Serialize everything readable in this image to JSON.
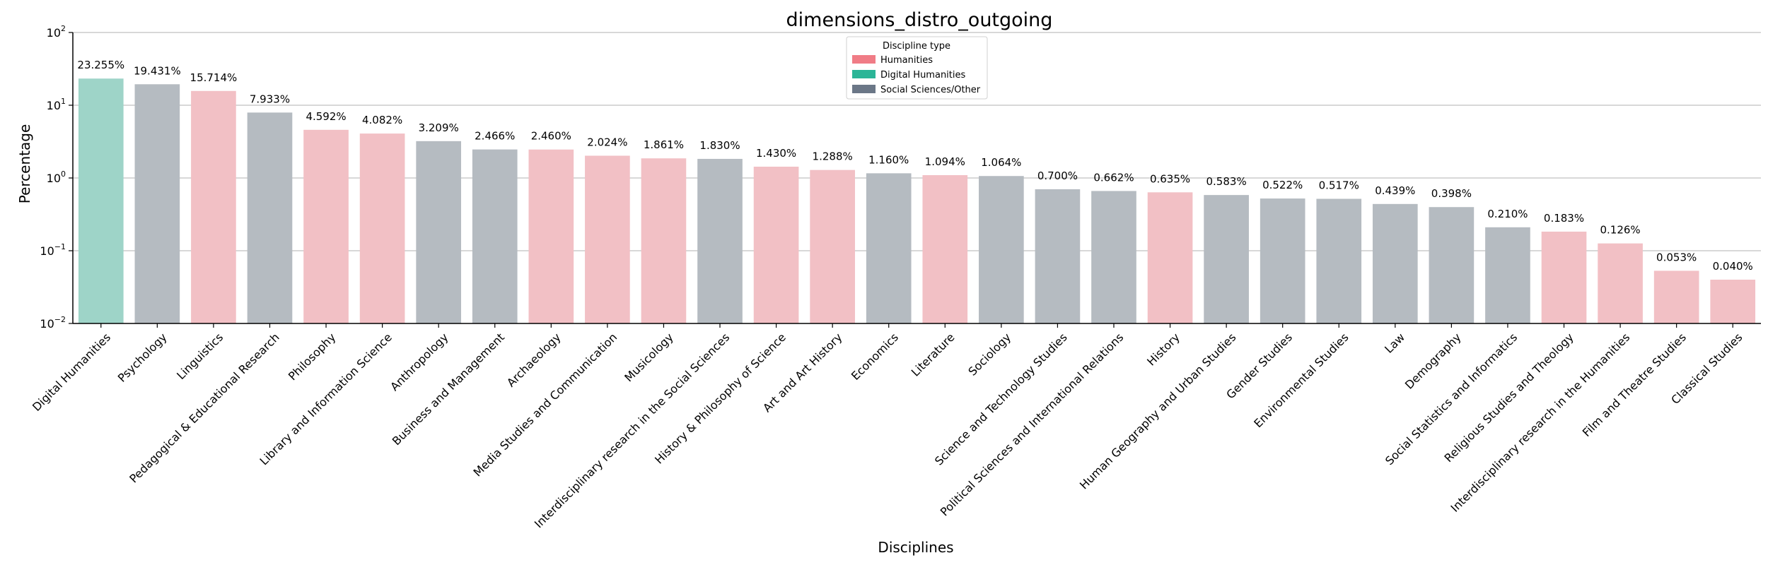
{
  "chart_data": {
    "type": "bar",
    "title": "dimensions_distro_outgoing",
    "xlabel": "Disciplines",
    "ylabel": "Percentage",
    "yscale": "log",
    "ylim": [
      0.01,
      100
    ],
    "yticks": [
      {
        "value": 0.01,
        "base": "10",
        "exp": "−2"
      },
      {
        "value": 0.1,
        "base": "10",
        "exp": "−1"
      },
      {
        "value": 1,
        "base": "10",
        "exp": "0"
      },
      {
        "value": 10,
        "base": "10",
        "exp": "1"
      },
      {
        "value": 100,
        "base": "10",
        "exp": "2"
      }
    ],
    "grid": "horizontal",
    "legend": {
      "title": "Discipline type",
      "placement": "top-center",
      "entries": [
        {
          "key": "humanities",
          "label": "Humanities",
          "color": "#F07C86"
        },
        {
          "key": "dh",
          "label": "Digital Humanities",
          "color": "#2BB597"
        },
        {
          "key": "social",
          "label": "Social Sciences/Other",
          "color": "#6B7787"
        }
      ]
    },
    "bar_colors": {
      "humanities": "#F2C0C5",
      "dh": "#9ED4C8",
      "social": "#B5BBC1"
    },
    "categories": [
      "Digital Humanities",
      "Psychology",
      "Linguistics",
      "Pedagogical & Educational Research",
      "Philosophy",
      "Library and Information Science",
      "Anthropology",
      "Business and Management",
      "Archaeology",
      "Media Studies and Communication",
      "Musicology",
      "Interdisciplinary research in the Social Sciences",
      "History & Philosophy of Science",
      "Art and Art History",
      "Economics",
      "Literature",
      "Sociology",
      "Science and Technology Studies",
      "Political Sciences and International Relations",
      "History",
      "Human Geography and Urban Studies",
      "Gender Studies",
      "Environmental Studies",
      "Law",
      "Demography",
      "Social Statistics and Informatics",
      "Religious Studies and Theology",
      "Interdisciplinary research in the Humanities",
      "Film and Theatre Studies",
      "Classical Studies"
    ],
    "values": [
      23.255,
      19.431,
      15.714,
      7.933,
      4.592,
      4.082,
      3.209,
      2.466,
      2.46,
      2.024,
      1.861,
      1.83,
      1.43,
      1.288,
      1.16,
      1.094,
      1.064,
      0.7,
      0.662,
      0.635,
      0.583,
      0.522,
      0.517,
      0.439,
      0.398,
      0.21,
      0.183,
      0.126,
      0.053,
      0.04
    ],
    "value_labels": [
      "23.255%",
      "19.431%",
      "15.714%",
      "7.933%",
      "4.592%",
      "4.082%",
      "3.209%",
      "2.466%",
      "2.460%",
      "2.024%",
      "1.861%",
      "1.830%",
      "1.430%",
      "1.288%",
      "1.160%",
      "1.094%",
      "1.064%",
      "0.700%",
      "0.662%",
      "0.635%",
      "0.583%",
      "0.522%",
      "0.517%",
      "0.439%",
      "0.398%",
      "0.210%",
      "0.183%",
      "0.126%",
      "0.053%",
      "0.040%"
    ],
    "types": [
      "dh",
      "social",
      "humanities",
      "social",
      "humanities",
      "humanities",
      "social",
      "social",
      "humanities",
      "humanities",
      "humanities",
      "social",
      "humanities",
      "humanities",
      "social",
      "humanities",
      "social",
      "social",
      "social",
      "humanities",
      "social",
      "social",
      "social",
      "social",
      "social",
      "social",
      "humanities",
      "humanities",
      "humanities",
      "humanities"
    ]
  }
}
